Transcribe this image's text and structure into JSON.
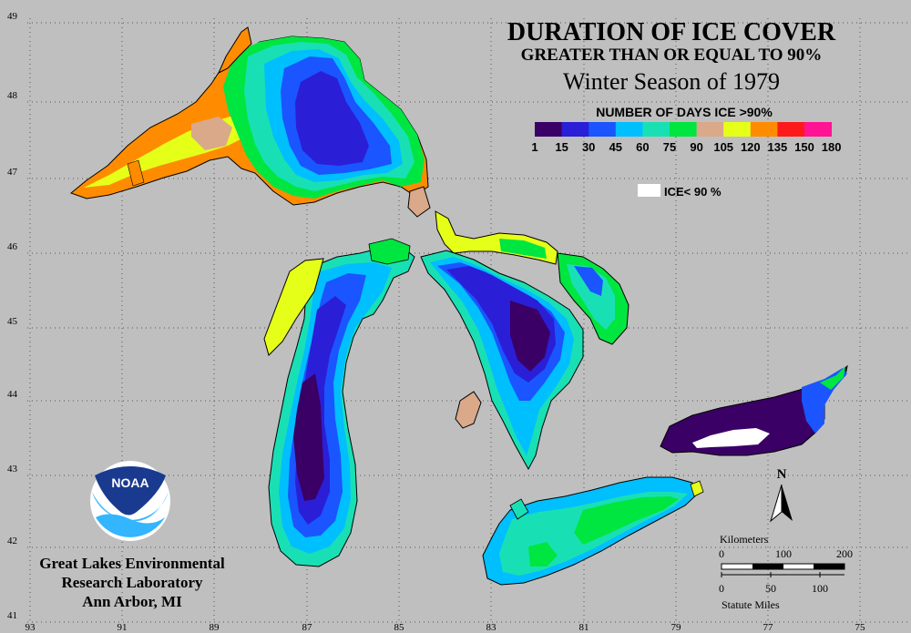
{
  "title": {
    "line1": "DURATION OF ICE COVER",
    "line2": "GREATER THAN OR EQUAL TO 90%",
    "line3": "Winter Season of 1979"
  },
  "legend": {
    "heading": "NUMBER OF DAYS ICE >90%",
    "colors": [
      "#3a0066",
      "#2a1fd6",
      "#1a55ff",
      "#00bfff",
      "#19e0b4",
      "#00e640",
      "#d9a98a",
      "#e6ff19",
      "#ff8c00",
      "#ff1a1a",
      "#ff1493"
    ],
    "ticks": [
      "1",
      "15",
      "30",
      "45",
      "60",
      "75",
      "90",
      "105",
      "120",
      "135",
      "150",
      "180"
    ],
    "no_ice_label": "ICE< 90 %"
  },
  "axes": {
    "lat_labels": [
      "49",
      "48",
      "47",
      "46",
      "45",
      "44",
      "43",
      "42",
      "41"
    ],
    "lon_labels": [
      "93",
      "91",
      "89",
      "87",
      "85",
      "83",
      "81",
      "79",
      "77",
      "75"
    ]
  },
  "north_arrow": {
    "label": "N"
  },
  "scale_bar": {
    "km_title": "Kilometers",
    "km_ticks": [
      "0",
      "100",
      "200"
    ],
    "mi_ticks": [
      "0",
      "50",
      "100"
    ],
    "mi_title": "Statute Miles"
  },
  "credit": {
    "line1": "Great Lakes Environmental",
    "line2": "Research Laboratory",
    "line3": "Ann Arbor, MI",
    "logo_text": "NOAA"
  }
}
